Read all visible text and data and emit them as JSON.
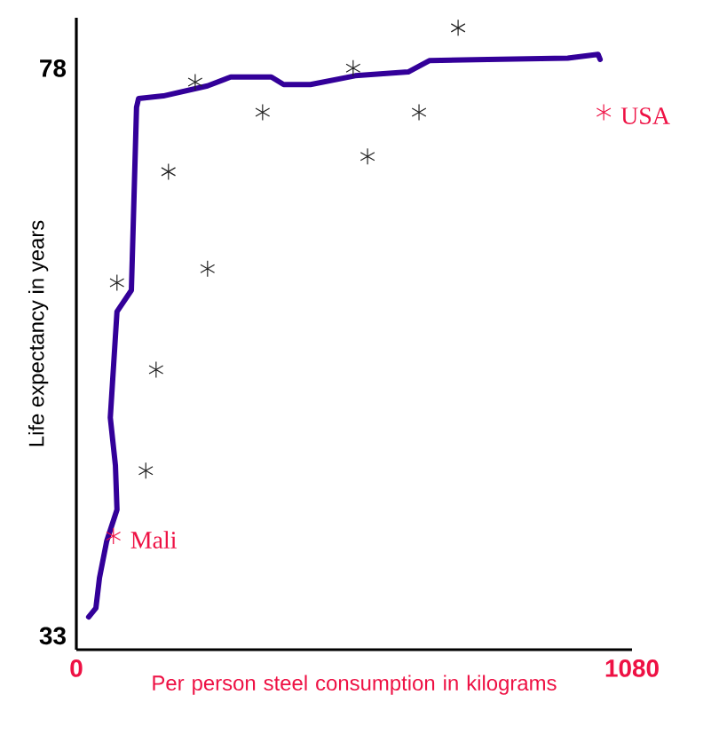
{
  "chart_data": {
    "type": "scatter",
    "xlabel": "Per person steel consumption in kilograms",
    "ylabel": "Life expectancy in years",
    "xlim": [
      0,
      1080
    ],
    "ylim": [
      31.9,
      82
    ],
    "xticks": [
      0,
      1080
    ],
    "yticks": [
      33,
      78
    ],
    "marker": "cross",
    "series": [
      {
        "color": "#222222",
        "x": [
          742,
          231,
          362,
          538,
          666,
          566,
          179,
          255,
          79,
          155,
          135
        ],
        "values": [
          81.2,
          76.9,
          74.5,
          78.0,
          74.5,
          71.0,
          69.8,
          62.1,
          61.0,
          54.1,
          46.1
        ]
      },
      {
        "color": "#ee1144",
        "x": [
          72,
          1025
        ],
        "values": [
          40.9,
          74.5
        ]
      },
      {
        "type": "line",
        "marker": "none",
        "line_style": "solid",
        "color": "#330099",
        "x": [
          24,
          38,
          45,
          59,
          79,
          76,
          66,
          79,
          107,
          117,
          121,
          169,
          255,
          300,
          379,
          403,
          455,
          542,
          645,
          686,
          800,
          955,
          1014,
          1018
        ],
        "values": [
          34.5,
          35.2,
          37.6,
          40.5,
          43,
          46.5,
          50.3,
          58.7,
          60.4,
          74.9,
          75.6,
          75.8,
          76.6,
          77.3,
          77.3,
          76.7,
          76.7,
          77.4,
          77.7,
          78.6,
          78.7,
          78.8,
          79.1,
          78.7
        ]
      }
    ],
    "annotations": [
      {
        "text": "USA",
        "x": 1025,
        "y": 74.5
      },
      {
        "text": "Mali",
        "x": 72,
        "y": 40.9
      }
    ]
  }
}
